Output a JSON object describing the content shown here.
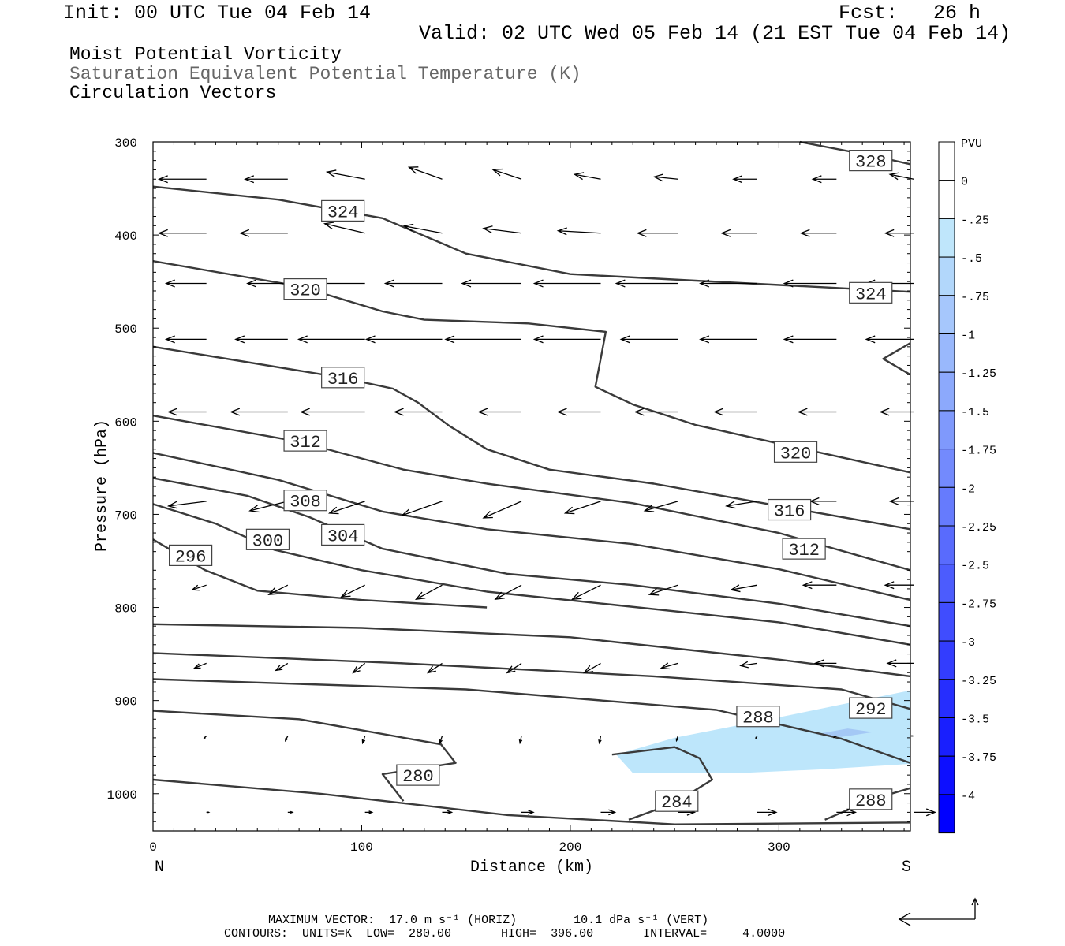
{
  "header": {
    "init": "Init: 00 UTC Tue 04 Feb 14",
    "fcst": "Fcst:   26 h",
    "valid": "Valid: 02 UTC Wed 05 Feb 14 (21 EST Tue 04 Feb 14)"
  },
  "titles": {
    "line1": "Moist Potential Vorticity",
    "line2": "Saturation Equivalent Potential Temperature (K)",
    "line3": "Circulation Vectors"
  },
  "colors": {
    "contour": "#3a3a3a",
    "shade_light": "#bde6fb",
    "shade_mid": "#a4c8f5",
    "frame": "#000000"
  },
  "chart_data": {
    "type": "cross-section",
    "xlabel": "Distance (km)",
    "ylabel": "Pressure (hPa)",
    "x_end_labels": {
      "left": "N",
      "right": "S"
    },
    "xlim": [
      0,
      363
    ],
    "ylim": [
      300,
      1040
    ],
    "y_log_scale": false,
    "x_ticks": [
      0,
      100,
      200,
      300
    ],
    "y_ticks": [
      300,
      400,
      500,
      600,
      700,
      800,
      900,
      1000
    ],
    "contour_units": "K",
    "contour_labels": [
      {
        "value": "328",
        "x": 344,
        "p": 320
      },
      {
        "value": "324",
        "x": 91,
        "p": 374
      },
      {
        "value": "324",
        "x": 344,
        "p": 462
      },
      {
        "value": "320",
        "x": 73,
        "p": 458
      },
      {
        "value": "320",
        "x": 308,
        "p": 633
      },
      {
        "value": "316",
        "x": 91,
        "p": 553
      },
      {
        "value": "316",
        "x": 305,
        "p": 695
      },
      {
        "value": "312",
        "x": 73,
        "p": 621
      },
      {
        "value": "312",
        "x": 312,
        "p": 737
      },
      {
        "value": "308",
        "x": 73,
        "p": 685
      },
      {
        "value": "304",
        "x": 91,
        "p": 722
      },
      {
        "value": "300",
        "x": 55,
        "p": 727
      },
      {
        "value": "296",
        "x": 18,
        "p": 744
      },
      {
        "value": "292",
        "x": 344,
        "p": 908
      },
      {
        "value": "288",
        "x": 290,
        "p": 917
      },
      {
        "value": "288",
        "x": 344,
        "p": 1006
      },
      {
        "value": "284",
        "x": 251,
        "p": 1008
      },
      {
        "value": "280",
        "x": 127,
        "p": 980
      }
    ],
    "contours": [
      {
        "value": 328,
        "points": [
          [
            310,
            300
          ],
          [
            345,
            315
          ],
          [
            363,
            324
          ]
        ]
      },
      {
        "value": 324,
        "points": [
          [
            0,
            348
          ],
          [
            60,
            362
          ],
          [
            110,
            382
          ],
          [
            150,
            420
          ],
          [
            200,
            442
          ],
          [
            260,
            449
          ],
          [
            320,
            456
          ],
          [
            363,
            461
          ]
        ]
      },
      {
        "value": 320,
        "points": [
          [
            0,
            428
          ],
          [
            70,
            455
          ],
          [
            110,
            482
          ],
          [
            130,
            491
          ],
          [
            180,
            495
          ],
          [
            217,
            504
          ],
          [
            212,
            563
          ],
          [
            230,
            582
          ],
          [
            260,
            604
          ],
          [
            300,
            624
          ],
          [
            363,
            655
          ]
        ]
      },
      {
        "value": 320,
        "points": [
          [
            363,
            516
          ],
          [
            350,
            533
          ],
          [
            363,
            550
          ]
        ]
      },
      {
        "value": 316,
        "points": [
          [
            0,
            520
          ],
          [
            90,
            553
          ],
          [
            115,
            565
          ],
          [
            127,
            580
          ],
          [
            142,
            605
          ],
          [
            160,
            630
          ],
          [
            190,
            652
          ],
          [
            240,
            667
          ],
          [
            300,
            691
          ],
          [
            363,
            716
          ]
        ]
      },
      {
        "value": 312,
        "points": [
          [
            0,
            594
          ],
          [
            70,
            622
          ],
          [
            120,
            652
          ],
          [
            160,
            667
          ],
          [
            230,
            688
          ],
          [
            300,
            720
          ],
          [
            363,
            760
          ]
        ]
      },
      {
        "value": 308,
        "points": [
          [
            0,
            634
          ],
          [
            60,
            663
          ],
          [
            110,
            697
          ],
          [
            160,
            716
          ],
          [
            230,
            732
          ],
          [
            300,
            759
          ],
          [
            363,
            792
          ]
        ]
      },
      {
        "value": 304,
        "points": [
          [
            0,
            661
          ],
          [
            45,
            680
          ],
          [
            75,
            703
          ],
          [
            110,
            737
          ],
          [
            170,
            764
          ],
          [
            230,
            776
          ],
          [
            300,
            796
          ],
          [
            363,
            820
          ]
        ]
      },
      {
        "value": 300,
        "points": [
          [
            0,
            689
          ],
          [
            30,
            710
          ],
          [
            58,
            738
          ],
          [
            100,
            760
          ],
          [
            160,
            783
          ],
          [
            220,
            797
          ],
          [
            300,
            816
          ],
          [
            363,
            840
          ]
        ]
      },
      {
        "value": 296,
        "points": [
          [
            0,
            727
          ],
          [
            25,
            760
          ],
          [
            50,
            782
          ],
          [
            100,
            792
          ],
          [
            160,
            800
          ]
        ]
      },
      {
        "value": 292,
        "points": [
          [
            0,
            818
          ],
          [
            100,
            822
          ],
          [
            200,
            832
          ],
          [
            300,
            856
          ],
          [
            363,
            874
          ]
        ]
      },
      {
        "value": 292,
        "points": [
          [
            0,
            849
          ],
          [
            120,
            860
          ],
          [
            240,
            874
          ],
          [
            330,
            888
          ],
          [
            363,
            909
          ]
        ]
      },
      {
        "value": 288,
        "points": [
          [
            0,
            877
          ],
          [
            150,
            888
          ],
          [
            270,
            910
          ],
          [
            330,
            941
          ],
          [
            363,
            967
          ]
        ]
      },
      {
        "value": 284,
        "points": [
          [
            0,
            911
          ],
          [
            70,
            920
          ],
          [
            138,
            947
          ],
          [
            145,
            967
          ],
          [
            110,
            979
          ],
          [
            120,
            1008
          ]
        ]
      },
      {
        "value": 284,
        "points": [
          [
            220,
            958
          ],
          [
            250,
            950
          ],
          [
            262,
            962
          ],
          [
            268,
            985
          ],
          [
            250,
            1010
          ],
          [
            228,
            1028
          ]
        ]
      },
      {
        "value": 280,
        "points": [
          [
            0,
            985
          ],
          [
            80,
            1000
          ],
          [
            170,
            1023
          ],
          [
            250,
            1033
          ],
          [
            363,
            1031
          ]
        ]
      },
      {
        "value": 288,
        "points": [
          [
            322,
            1028
          ],
          [
            345,
            1006
          ],
          [
            363,
            994
          ]
        ]
      }
    ],
    "pv_shading": {
      "levels": [
        "PVU",
        "0",
        "-.25",
        "-.5",
        "-.75",
        "-1",
        "-1.25",
        "-1.5",
        "-1.75",
        "-2",
        "-2.25",
        "-2.5",
        "-2.75",
        "-3",
        "-3.25",
        "-3.5",
        "-3.75",
        "-4"
      ],
      "regions": [
        {
          "level_range": [
            -0.5,
            -0.25
          ],
          "polygon": [
            [
              222,
              958
            ],
            [
              250,
              940
            ],
            [
              300,
              918
            ],
            [
              363,
              889
            ],
            [
              363,
              968
            ],
            [
              320,
              974
            ],
            [
              280,
              978
            ],
            [
              230,
              978
            ]
          ]
        },
        {
          "level_range": [
            -0.75,
            -0.5
          ],
          "polygon": [
            [
              318,
              936
            ],
            [
              333,
              930
            ],
            [
              345,
              934
            ],
            [
              330,
              939
            ]
          ]
        }
      ]
    },
    "vector_scale": {
      "horizontal": "17.0 m s-1",
      "vertical": "10.1 dPa s-1"
    },
    "vectors": [
      {
        "p": 340,
        "x": [
          15,
          54,
          91,
          128,
          166,
          204,
          241,
          279,
          317,
          354
        ],
        "u": [
          -1.0,
          -0.9,
          -0.8,
          -0.7,
          -0.6,
          -0.55,
          -0.5,
          -0.5,
          -0.5,
          -0.5
        ],
        "w": [
          0,
          0,
          0.15,
          0.25,
          0.2,
          0.1,
          0.05,
          0,
          0,
          0.1
        ]
      },
      {
        "p": 398,
        "x": [
          15,
          54,
          91,
          128,
          166,
          204,
          241,
          279,
          317,
          354
        ],
        "u": [
          -1.0,
          -1.0,
          -0.85,
          -0.8,
          -0.8,
          -0.9,
          -0.85,
          -0.75,
          -0.75,
          -0.6
        ],
        "w": [
          0,
          0,
          0.2,
          0.15,
          0.1,
          0.05,
          0,
          0,
          0,
          0
        ]
      },
      {
        "p": 452,
        "x": [
          15,
          54,
          91,
          128,
          166,
          204,
          241,
          279,
          317,
          354
        ],
        "u": [
          -0.85,
          -0.85,
          -1.1,
          -1.2,
          -1.25,
          -1.4,
          -1.3,
          -1.2,
          -1.1,
          -1.0
        ],
        "w": [
          0,
          0,
          0,
          0,
          0,
          0,
          0,
          0,
          0,
          0
        ]
      },
      {
        "p": 512,
        "x": [
          15,
          54,
          91,
          128,
          166,
          204,
          241,
          279,
          317,
          354
        ],
        "u": [
          -0.85,
          -1.1,
          -1.4,
          -1.6,
          -1.6,
          -1.4,
          -1.2,
          -1.2,
          -1.1,
          -1.0
        ],
        "w": [
          0,
          0,
          0,
          0,
          0,
          0,
          0,
          0,
          0,
          0
        ]
      },
      {
        "p": 590,
        "x": [
          15,
          54,
          91,
          128,
          166,
          204,
          241,
          279,
          317,
          354
        ],
        "u": [
          -0.8,
          -1.2,
          -1.35,
          -1.0,
          -0.9,
          -0.9,
          -0.9,
          -0.9,
          -0.8,
          -0.7
        ],
        "w": [
          0,
          0,
          0,
          0,
          0,
          0,
          0,
          0,
          0,
          0
        ]
      },
      {
        "p": 686,
        "x": [
          15,
          54,
          91,
          128,
          166,
          204,
          241,
          279,
          317,
          354
        ],
        "u": [
          -0.8,
          -0.8,
          -0.75,
          -0.85,
          -0.8,
          -0.75,
          -0.7,
          -0.65,
          -0.55,
          -0.5
        ],
        "w": [
          -0.1,
          -0.2,
          -0.25,
          -0.3,
          -0.35,
          -0.25,
          -0.2,
          -0.1,
          0,
          0
        ]
      },
      {
        "p": 776,
        "x": [
          15,
          54,
          91,
          128,
          166,
          204,
          241,
          279,
          317,
          354
        ],
        "u": [
          -0.3,
          -0.4,
          -0.5,
          -0.55,
          -0.55,
          -0.6,
          -0.6,
          -0.55,
          -0.7,
          -0.6
        ],
        "w": [
          -0.1,
          -0.2,
          -0.25,
          -0.3,
          -0.3,
          -0.3,
          -0.2,
          -0.1,
          0,
          0
        ]
      },
      {
        "p": 860,
        "x": [
          15,
          54,
          91,
          128,
          166,
          204,
          241,
          279,
          317,
          354
        ],
        "u": [
          -0.25,
          -0.25,
          -0.25,
          -0.3,
          -0.3,
          -0.35,
          -0.35,
          -0.35,
          -0.45,
          -0.55
        ],
        "w": [
          -0.1,
          -0.15,
          -0.2,
          -0.2,
          -0.2,
          -0.2,
          -0.1,
          -0.05,
          0,
          0
        ]
      },
      {
        "p": 938,
        "x": [
          15,
          54,
          91,
          128,
          166,
          204,
          241,
          279,
          317,
          354
        ],
        "u": [
          -0.05,
          -0.05,
          -0.05,
          -0.05,
          -0.03,
          -0.03,
          -0.03,
          -0.03,
          -0.05,
          -0.05
        ],
        "w": [
          -0.05,
          -0.1,
          -0.15,
          -0.15,
          -0.15,
          -0.15,
          -0.1,
          -0.05,
          -0.03,
          0
        ]
      },
      {
        "p": 1020,
        "x": [
          15,
          54,
          91,
          128,
          166,
          204,
          241,
          279,
          317,
          354
        ],
        "u": [
          0.05,
          0.1,
          0.15,
          0.2,
          0.25,
          0.3,
          0.35,
          0.4,
          0.4,
          0.45
        ],
        "w": [
          0,
          0,
          0,
          0,
          0,
          0,
          0,
          0,
          0,
          0
        ]
      }
    ]
  },
  "footer": {
    "max_vector": "MAXIMUM VECTOR:  17.0 m s⁻¹ (HORIZ)        10.1 dPa s⁻¹ (VERT)",
    "contours": "CONTOURS:  UNITS=K  LOW=  280.00       HIGH=  396.00       INTERVAL=     4.0000"
  }
}
